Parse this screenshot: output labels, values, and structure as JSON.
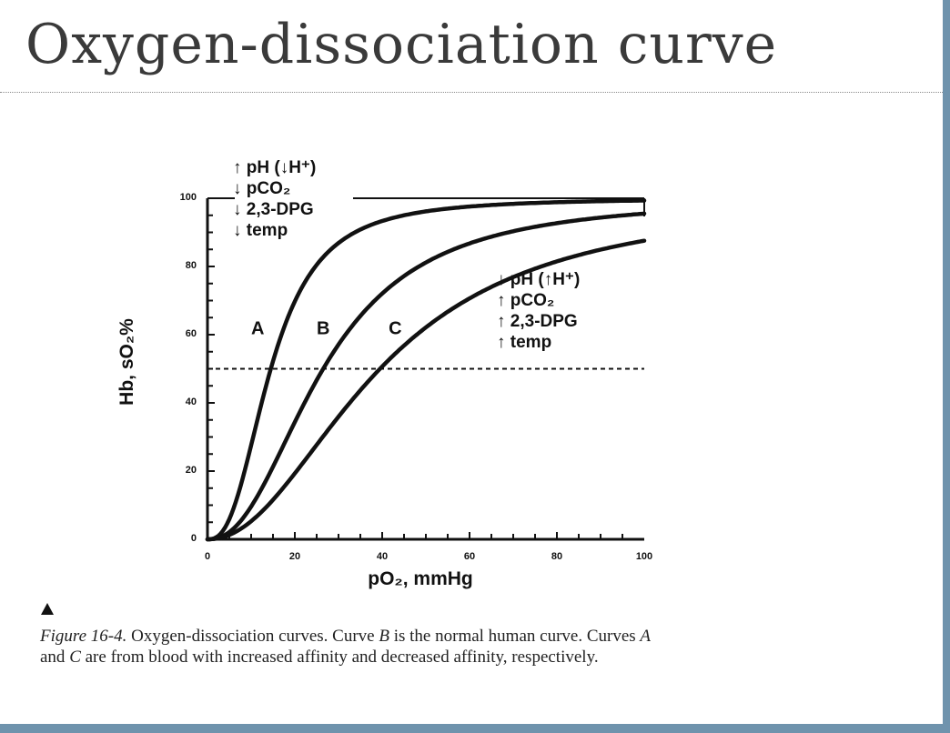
{
  "page": {
    "title": "Oxygen-dissociation curve"
  },
  "chart_data": {
    "type": "line",
    "xlabel": "pO₂, mmHg",
    "ylabel": "Hb, sO₂%",
    "xlim": [
      0,
      100
    ],
    "ylim": [
      0,
      100
    ],
    "x_ticks": [
      "0",
      "20",
      "40",
      "60",
      "80",
      "100"
    ],
    "y_ticks": [
      "0",
      "20",
      "40",
      "60",
      "80",
      "100"
    ],
    "reference_line": {
      "y": 50,
      "style": "dashed"
    },
    "series": [
      {
        "name": "A",
        "p50": 14.5,
        "n": 2.6
      },
      {
        "name": "B",
        "p50": 26.5,
        "n": 2.3
      },
      {
        "name": "C",
        "p50": 39.5,
        "n": 2.1
      }
    ],
    "annotations": {
      "left_shift": [
        "↑ pH (↓H⁺)",
        "↓ pCO₂",
        "↓ 2,3-DPG",
        "↓ temp"
      ],
      "right_shift": [
        "↓ pH (↑H⁺)",
        "↑ pCO₂",
        "↑ 2,3-DPG",
        "↑ temp"
      ]
    }
  },
  "caption": {
    "figure_label": "Figure 16-4.",
    "line1_rest": " Oxygen-dissociation curves. Curve ",
    "b_label": "B",
    "line1_end": " is the normal human curve. Curves ",
    "a_label": "A",
    "and": " and ",
    "c_label": "C",
    "line2_end": " are from blood with increased affinity and decreased affinity, respectively."
  }
}
